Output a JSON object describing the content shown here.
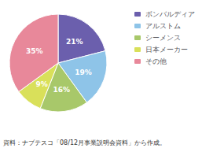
{
  "chart_data": {
    "type": "pie",
    "categories": [
      "ボンバルディア",
      "アルストム",
      "シーメンス",
      "日本メーカー",
      "その他"
    ],
    "values": [
      21,
      19,
      16,
      9,
      35
    ],
    "value_labels": [
      "21%",
      "19%",
      "16%",
      "9%",
      "35%"
    ],
    "colors": [
      "#6b5fad",
      "#8ec4e8",
      "#a8c86a",
      "#d9e05a",
      "#e8889a"
    ],
    "data_labels": true,
    "legend": "upper right",
    "annotations": [
      "資料：ナブテスコ「08/12月事業説明会資料」から作成。"
    ]
  }
}
